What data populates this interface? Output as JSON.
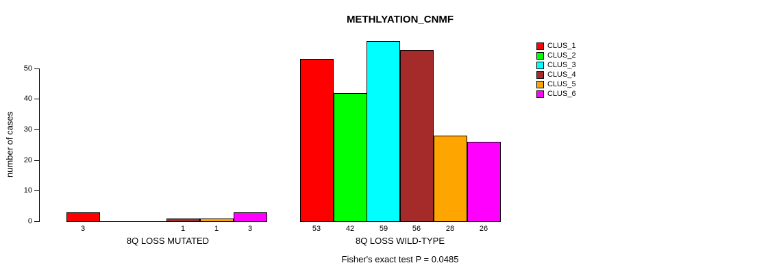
{
  "chart_data": {
    "type": "bar",
    "title": "METHLYATION_CNMF",
    "ylabel": "number of cases",
    "xlabel": "",
    "groups": [
      "8Q LOSS MUTATED",
      "8Q LOSS WILD-TYPE"
    ],
    "series": [
      {
        "name": "CLUS_1",
        "color": "#ff0000",
        "values": [
          3,
          53
        ]
      },
      {
        "name": "CLUS_2",
        "color": "#00ff00",
        "values": [
          0,
          42
        ]
      },
      {
        "name": "CLUS_3",
        "color": "#00ffff",
        "values": [
          0,
          59
        ]
      },
      {
        "name": "CLUS_4",
        "color": "#a52a2a",
        "values": [
          1,
          56
        ]
      },
      {
        "name": "CLUS_5",
        "color": "#ffa500",
        "values": [
          1,
          28
        ]
      },
      {
        "name": "CLUS_6",
        "color": "#ff00ff",
        "values": [
          3,
          26
        ]
      }
    ],
    "bar_value_labels": [
      [
        "3",
        "",
        "",
        "1",
        "1",
        "3"
      ],
      [
        "53",
        "42",
        "59",
        "56",
        "28",
        "26"
      ]
    ],
    "yticks": [
      0,
      10,
      20,
      30,
      40,
      50
    ],
    "ylim": [
      0,
      59
    ],
    "grid": false,
    "legend_position": "right",
    "annotation": "Fisher's exact test P = 0.0485",
    "axis_color": "#000000",
    "background_color": "#ffffff"
  }
}
